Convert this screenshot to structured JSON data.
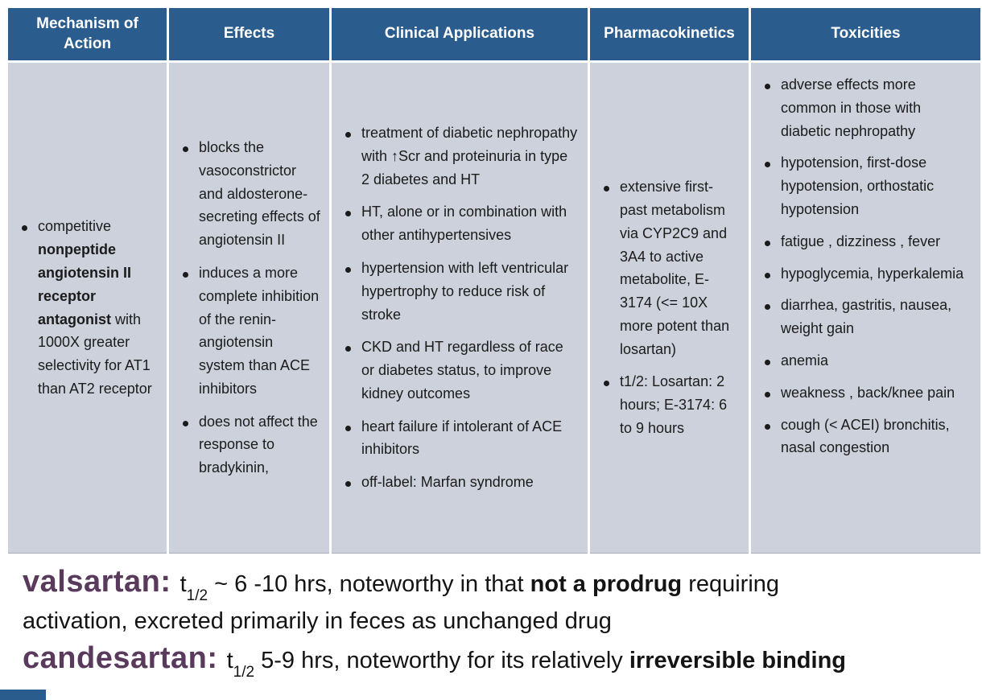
{
  "theme": {
    "header_bg": "#2B5C8E",
    "cell_bg": "#CDD1DB",
    "text": "#1b1b1b",
    "drug_name": "#5A3A5C",
    "page_bg": "#ffffff"
  },
  "table": {
    "headers": [
      "Mechanism of Action",
      "Effects",
      "Clinical Applications",
      "Pharmacokinetics",
      "Toxicities"
    ],
    "mechanism": {
      "pre": "competitive ",
      "bold": "nonpeptide angiotensin II receptor antagonist",
      "post": " with 1000X greater selectivity for AT1 than AT2 receptor"
    },
    "effects": [
      "blocks the vasoconstrictor and aldosterone-secreting effects of angiotensin II",
      "induces a more complete inhibition of the renin-angiotensin system than ACE inhibitors",
      "does not affect the response to bradykinin,"
    ],
    "clinical": [
      "treatment of diabetic nephropathy with ↑Scr and proteinuria in type 2 diabetes and HT",
      "HT, alone or in combination with other antihypertensives",
      "hypertension with left ventricular hypertrophy to reduce risk of stroke",
      "CKD and HT regardless of race or diabetes status, to improve kidney outcomes",
      "heart failure if intolerant of ACE inhibitors",
      "off-label: Marfan syndrome"
    ],
    "pharmacokinetics": [
      "extensive first-past metabolism via CYP2C9 and 3A4 to active metabolite, E-3174 (<= 10X more potent than losartan)",
      "t1/2: Losartan: 2 hours; E-3174: 6 to 9 hours"
    ],
    "toxicities": [
      "adverse effects more common in those with diabetic nephropathy",
      "hypotension, first-dose hypotension, orthostatic hypotension",
      "fatigue , dizziness , fever",
      "hypoglycemia, hyperkalemia",
      "diarrhea, gastritis, nausea, weight gain",
      "anemia",
      "weakness , back/knee pain",
      "cough (< ACEI) bronchitis, nasal congestion"
    ]
  },
  "notes": {
    "valsartan": {
      "name": "valsartan: ",
      "t": "t",
      "sub": "1/2",
      "mid": " ~ 6 -10 hrs, noteworthy in that ",
      "bold": "not a prodrug",
      "tail": " requiring",
      "line2": "activation, excreted primarily in feces as unchanged drug"
    },
    "candesartan": {
      "name": "candesartan: ",
      "t": "t",
      "sub": "1/2",
      "mid": " 5-9 hrs, noteworthy for its relatively ",
      "bold": "irreversible binding"
    }
  }
}
